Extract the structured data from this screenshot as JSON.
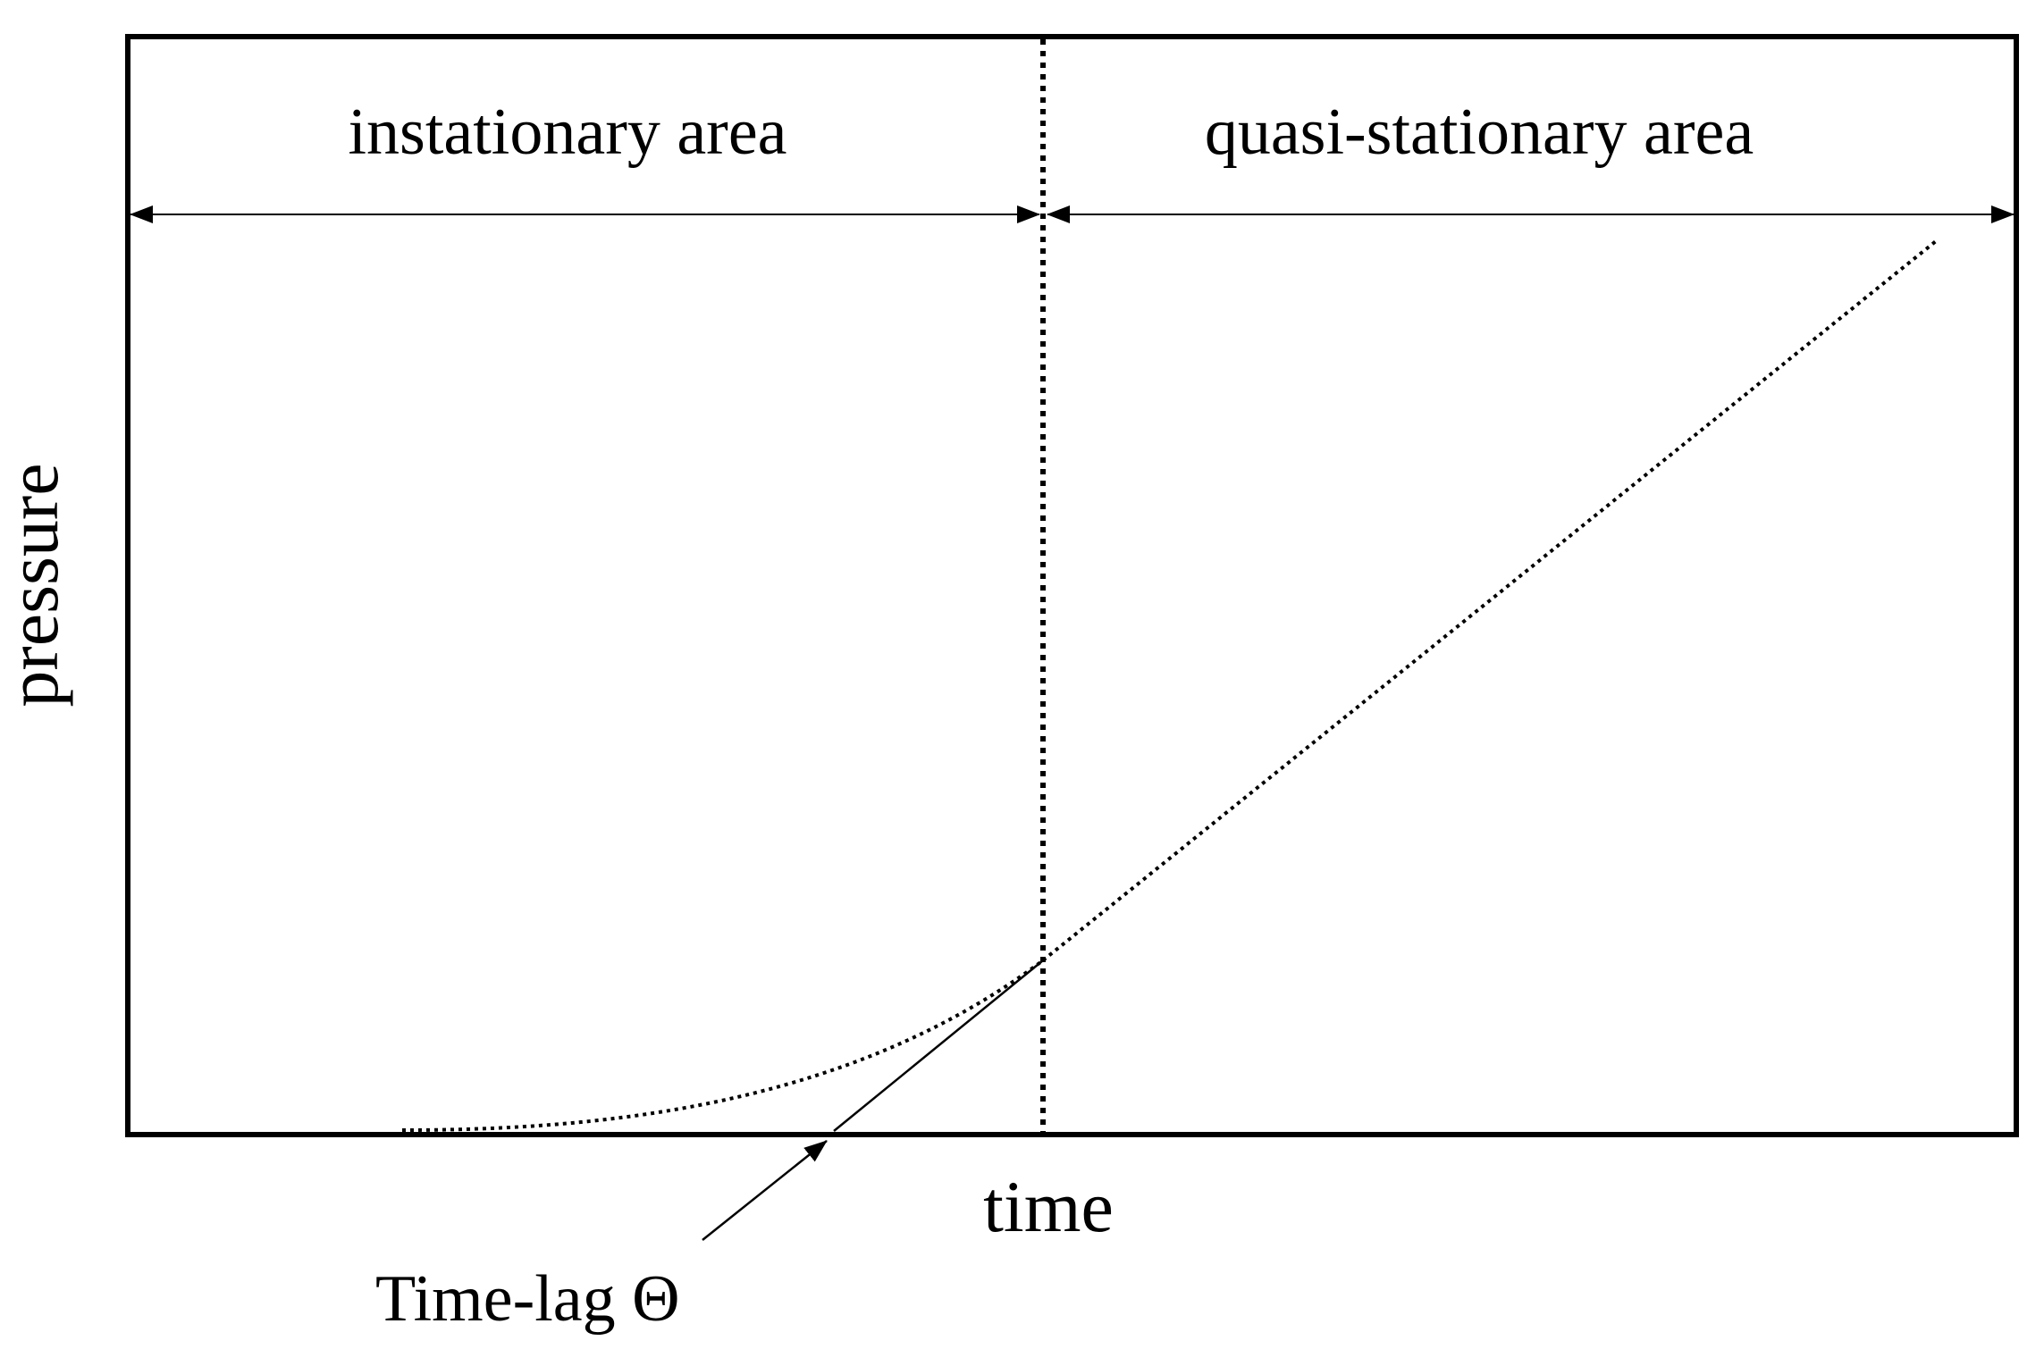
{
  "diagram": {
    "x_axis_label": "time",
    "y_axis_label": "pressure",
    "regions": {
      "left": "instationary area",
      "right": "quasi-stationary area"
    },
    "annotation": "Time-lag Θ",
    "colors": {
      "ink": "#000000",
      "background": "#ffffff"
    }
  }
}
